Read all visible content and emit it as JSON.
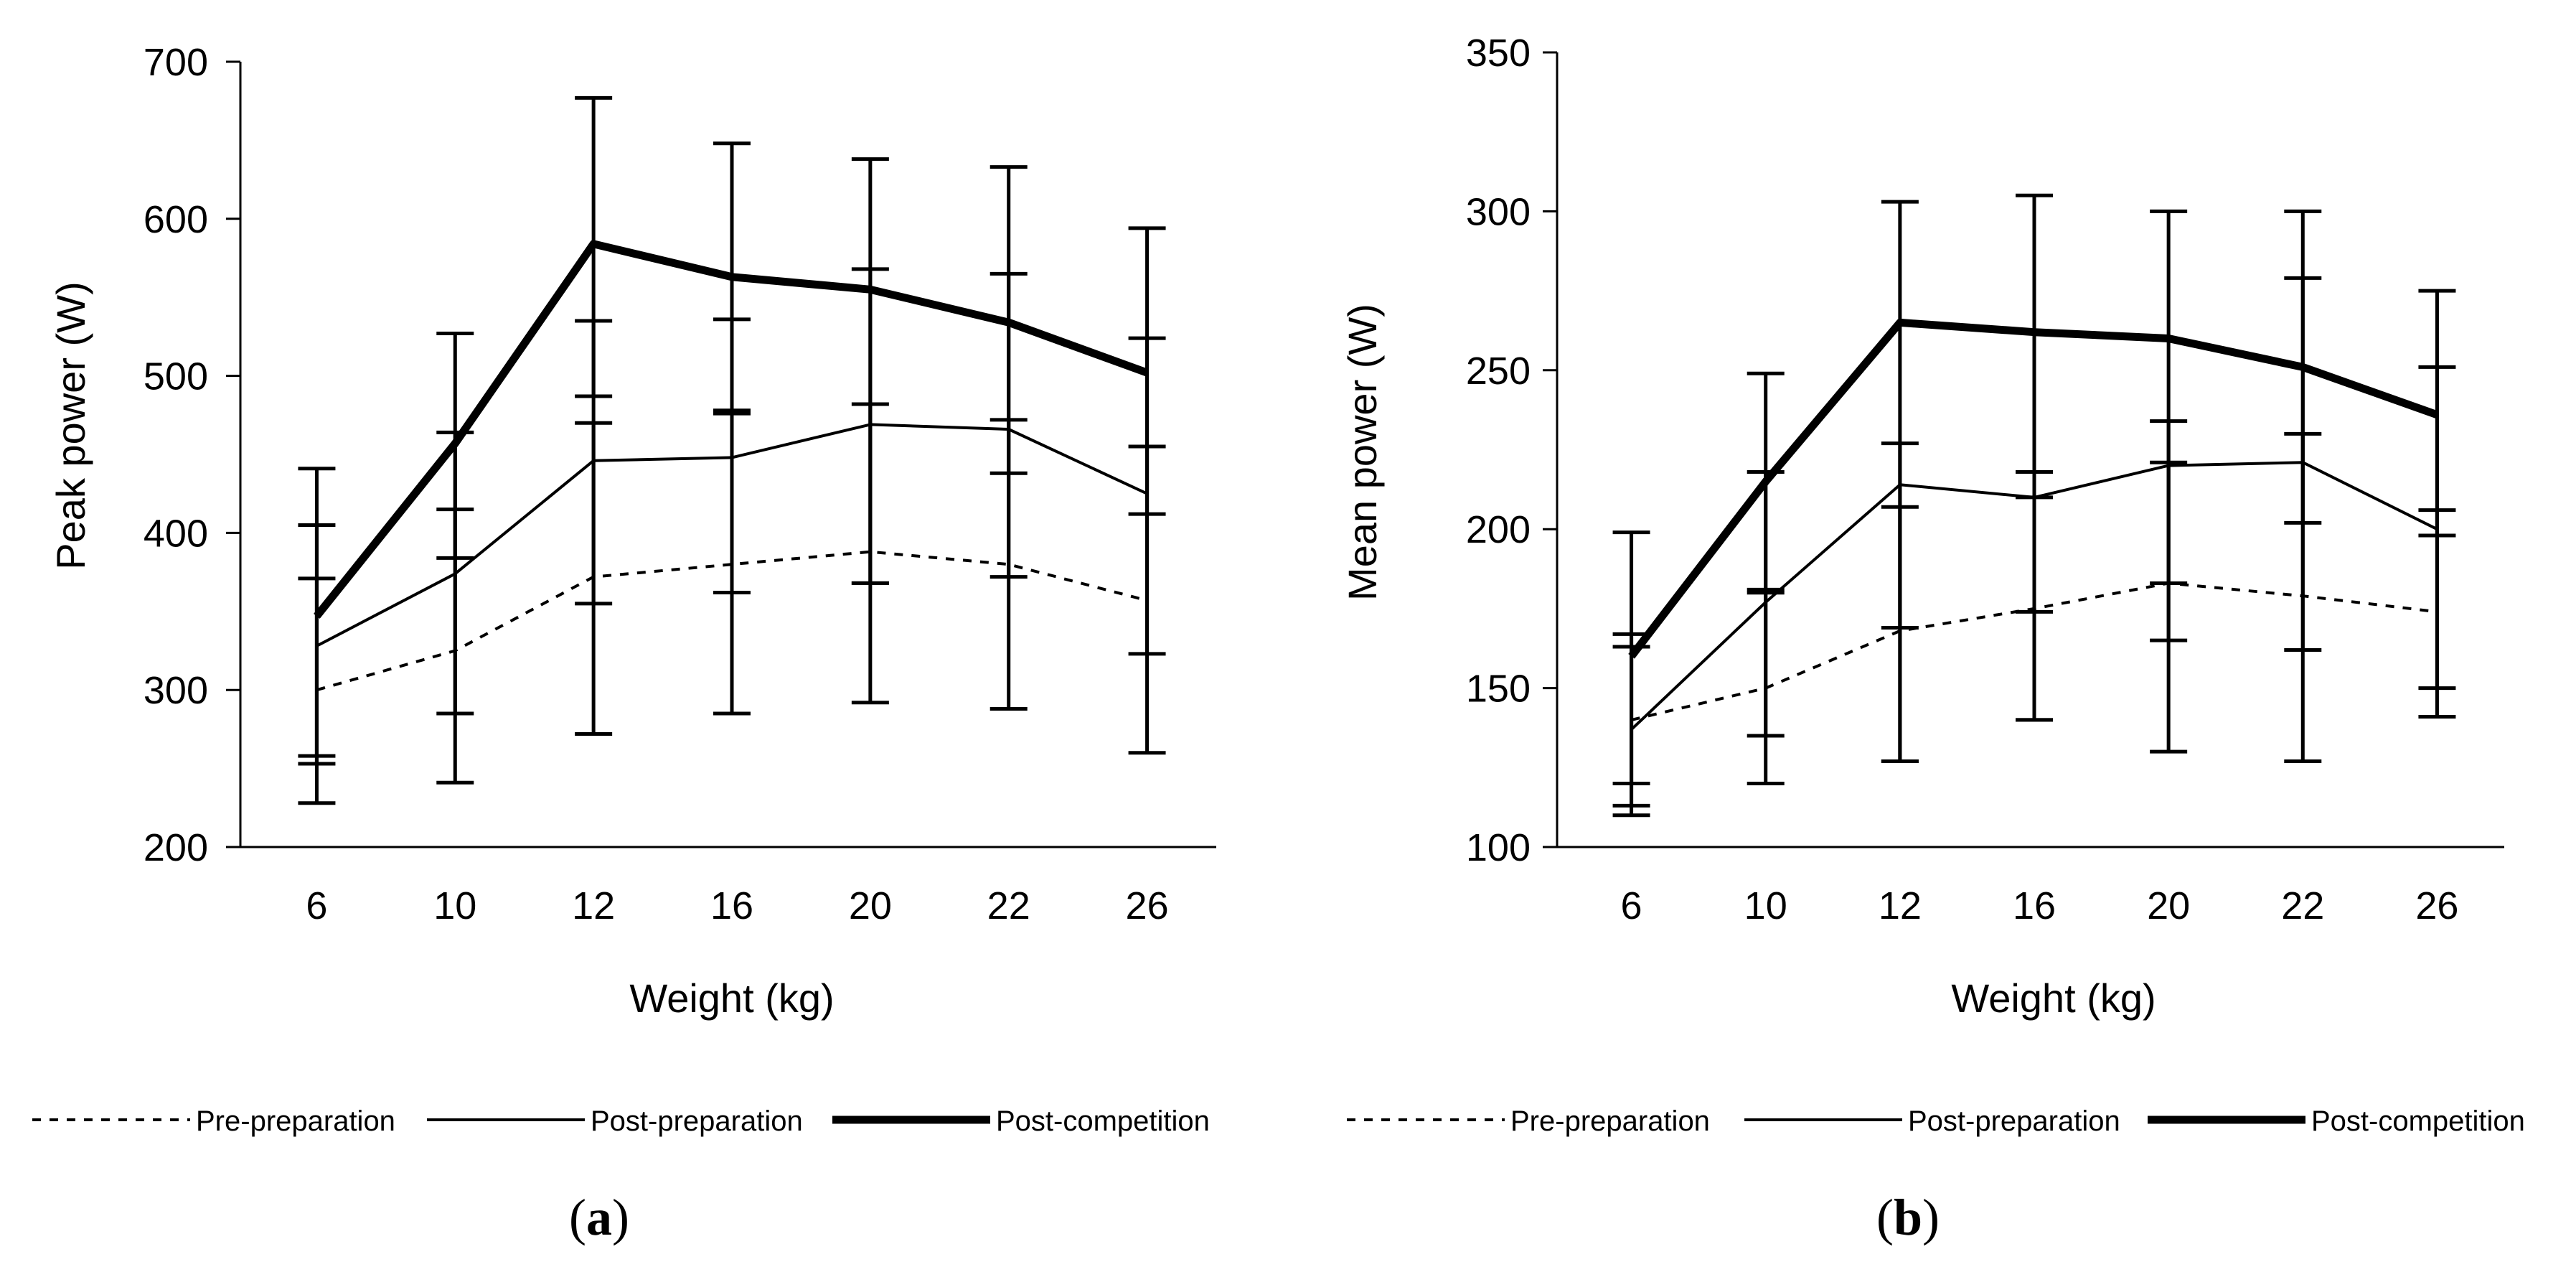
{
  "legend": [
    {
      "name": "Pre-preparation",
      "style": "dotted"
    },
    {
      "name": "Post-preparation",
      "style": "thin"
    },
    {
      "name": "Post-competition",
      "style": "thick"
    }
  ],
  "chart_data": [
    {
      "type": "line",
      "panel": "a",
      "caption_open": "(",
      "caption_letter": "a",
      "caption_close": ")",
      "xlabel": "Weight (kg)",
      "ylabel": "Peak power (W)",
      "categories": [
        "6",
        "10",
        "12",
        "16",
        "20",
        "22",
        "26"
      ],
      "ylim": [
        200,
        700
      ],
      "yticks": [
        200,
        300,
        400,
        500,
        600,
        700
      ],
      "series": [
        {
          "name": "Pre-preparation",
          "style": "dotted",
          "values": [
            300,
            325,
            372,
            380,
            388,
            380,
            357
          ],
          "err_low": [
            253,
            241,
            272,
            285,
            292,
            288,
            260
          ],
          "err_high": [
            371,
            415,
            470,
            476,
            482,
            472,
            455
          ]
        },
        {
          "name": "Post-preparation",
          "style": "thin",
          "values": [
            328,
            374,
            446,
            448,
            469,
            466,
            425
          ],
          "err_low": [
            258,
            285,
            355,
            362,
            368,
            372,
            323
          ],
          "err_high": [
            405,
            464,
            535,
            536,
            568,
            565,
            524
          ]
        },
        {
          "name": "Post-competition",
          "style": "thick",
          "values": [
            347,
            457,
            584,
            563,
            555,
            534,
            502
          ],
          "err_low": [
            228,
            384,
            487,
            478,
            368,
            438,
            412
          ],
          "err_high": [
            441,
            527,
            677,
            648,
            638,
            633,
            594
          ]
        }
      ]
    },
    {
      "type": "line",
      "panel": "b",
      "caption_open": "(",
      "caption_letter": "b",
      "caption_close": ")",
      "xlabel": "Weight (kg)",
      "ylabel": "Mean power (W)",
      "categories": [
        "6",
        "10",
        "12",
        "16",
        "20",
        "22",
        "26"
      ],
      "ylim": [
        100,
        350
      ],
      "yticks": [
        100,
        150,
        200,
        250,
        300,
        350
      ],
      "series": [
        {
          "name": "Pre-preparation",
          "style": "dotted",
          "values": [
            140,
            150,
            168,
            175,
            183,
            179,
            174
          ],
          "err_low": [
            110,
            120,
            127,
            140,
            130,
            127,
            141
          ],
          "err_high": [
            163,
            180,
            207,
            210,
            234,
            230,
            206
          ]
        },
        {
          "name": "Post-preparation",
          "style": "thin",
          "values": [
            137,
            177,
            214,
            210,
            220,
            221,
            200
          ],
          "err_low": [
            113,
            135,
            127,
            140,
            165,
            162,
            150
          ],
          "err_high": [
            167,
            218,
            227,
            218,
            221,
            279,
            251
          ]
        },
        {
          "name": "Post-competition",
          "style": "thick",
          "values": [
            160,
            215,
            265,
            262,
            260,
            251,
            236
          ],
          "err_low": [
            120,
            181,
            169,
            174,
            183,
            202,
            198
          ],
          "err_high": [
            199,
            249,
            303,
            305,
            300,
            300,
            275
          ]
        }
      ]
    }
  ]
}
